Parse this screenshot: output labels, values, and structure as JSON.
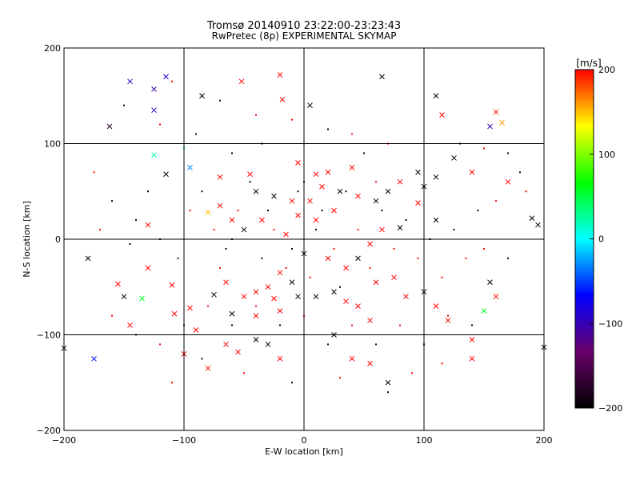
{
  "chart_data": {
    "type": "scatter",
    "title": "Tromsø 20140910 23:22:00-23:23:43",
    "subtitle": "RwPretec (8p) EXPERIMENTAL SKYMAP",
    "xlabel": "E-W location [km]",
    "ylabel": "N-S location [km]",
    "xlim": [
      -200,
      200
    ],
    "ylim": [
      -200,
      200
    ],
    "xticks": [
      -200,
      -100,
      0,
      100,
      200
    ],
    "yticks": [
      -200,
      -100,
      0,
      100,
      200
    ],
    "grid": true,
    "colorbar": {
      "label": "[m/s]",
      "min": -200,
      "max": 200,
      "ticks": [
        200,
        100,
        0,
        -100,
        -200
      ],
      "colors": [
        "#000000",
        "#6a006a",
        "#0000ff",
        "#00ffff",
        "#00ff00",
        "#ffff00",
        "#ff0000"
      ]
    },
    "series": [
      {
        "marker": "x",
        "points": [
          [
            -145,
            165,
            -90
          ],
          [
            -125,
            157,
            -100
          ],
          [
            -125,
            135,
            -90
          ],
          [
            -162,
            118,
            -180
          ],
          [
            -85,
            150,
            -200
          ],
          [
            -20,
            172,
            200
          ],
          [
            -52,
            165,
            200
          ],
          [
            -115,
            170,
            -80
          ],
          [
            -18,
            146,
            200
          ],
          [
            5,
            140,
            -200
          ],
          [
            65,
            170,
            -200
          ],
          [
            115,
            130,
            200
          ],
          [
            160,
            133,
            200
          ],
          [
            165,
            122,
            160
          ],
          [
            155,
            118,
            -100
          ],
          [
            110,
            150,
            -200
          ],
          [
            -125,
            88,
            20
          ],
          [
            -115,
            68,
            -200
          ],
          [
            -95,
            75,
            -30
          ],
          [
            -70,
            65,
            200
          ],
          [
            -45,
            68,
            200
          ],
          [
            10,
            68,
            200
          ],
          [
            20,
            70,
            200
          ],
          [
            -5,
            80,
            200
          ],
          [
            40,
            75,
            200
          ],
          [
            80,
            60,
            200
          ],
          [
            100,
            55,
            -200
          ],
          [
            95,
            70,
            -200
          ],
          [
            110,
            65,
            -200
          ],
          [
            140,
            70,
            200
          ],
          [
            125,
            85,
            -200
          ],
          [
            170,
            60,
            200
          ],
          [
            -40,
            50,
            -200
          ],
          [
            -25,
            45,
            -200
          ],
          [
            -10,
            40,
            200
          ],
          [
            5,
            40,
            200
          ],
          [
            15,
            55,
            200
          ],
          [
            30,
            50,
            -200
          ],
          [
            45,
            45,
            200
          ],
          [
            60,
            40,
            -200
          ],
          [
            70,
            50,
            -200
          ],
          [
            95,
            38,
            200
          ],
          [
            110,
            20,
            -200
          ],
          [
            -70,
            35,
            200
          ],
          [
            -60,
            20,
            200
          ],
          [
            -50,
            10,
            -200
          ],
          [
            -80,
            28,
            150
          ],
          [
            190,
            22,
            -200
          ],
          [
            195,
            15,
            -200
          ],
          [
            -180,
            -20,
            -200
          ],
          [
            -150,
            -60,
            -200
          ],
          [
            -145,
            -90,
            200
          ],
          [
            -135,
            -62,
            60
          ],
          [
            -175,
            -125,
            -60
          ],
          [
            -155,
            -47,
            200
          ],
          [
            -110,
            -48,
            200
          ],
          [
            -95,
            -72,
            200
          ],
          [
            -75,
            -58,
            -200
          ],
          [
            -65,
            -45,
            200
          ],
          [
            -50,
            -60,
            200
          ],
          [
            -40,
            -55,
            200
          ],
          [
            -30,
            -50,
            200
          ],
          [
            -25,
            -62,
            200
          ],
          [
            -20,
            -75,
            200
          ],
          [
            -10,
            -45,
            -200
          ],
          [
            -5,
            -60,
            -200
          ],
          [
            10,
            -60,
            -200
          ],
          [
            25,
            -55,
            -200
          ],
          [
            35,
            -65,
            200
          ],
          [
            45,
            -70,
            200
          ],
          [
            55,
            -85,
            200
          ],
          [
            60,
            -45,
            200
          ],
          [
            75,
            -40,
            200
          ],
          [
            85,
            -60,
            200
          ],
          [
            100,
            -55,
            -200
          ],
          [
            110,
            -70,
            200
          ],
          [
            120,
            -85,
            200
          ],
          [
            140,
            -105,
            200
          ],
          [
            155,
            -45,
            -200
          ],
          [
            160,
            -60,
            200
          ],
          [
            -40,
            -105,
            -200
          ],
          [
            -30,
            -110,
            -200
          ],
          [
            -20,
            -125,
            200
          ],
          [
            -65,
            -110,
            200
          ],
          [
            -80,
            -135,
            200
          ],
          [
            -100,
            -120,
            200
          ],
          [
            40,
            -125,
            200
          ],
          [
            55,
            -130,
            200
          ],
          [
            70,
            -150,
            -200
          ],
          [
            140,
            -125,
            200
          ],
          [
            -55,
            -118,
            200
          ],
          [
            25,
            -100,
            -200
          ],
          [
            -35,
            20,
            200
          ],
          [
            -15,
            5,
            200
          ],
          [
            0,
            -15,
            -200
          ],
          [
            20,
            -20,
            200
          ],
          [
            35,
            -30,
            200
          ],
          [
            -20,
            -35,
            200
          ],
          [
            -40,
            -80,
            200
          ],
          [
            -60,
            -78,
            -200
          ],
          [
            150,
            -75,
            60
          ],
          [
            -200,
            -114,
            -200
          ],
          [
            200,
            -113,
            -200
          ],
          [
            -130,
            15,
            200
          ],
          [
            -130,
            -30,
            200
          ],
          [
            -108,
            -78,
            200
          ],
          [
            -90,
            -95,
            200
          ],
          [
            45,
            -20,
            -200
          ],
          [
            55,
            -5,
            200
          ],
          [
            65,
            10,
            200
          ],
          [
            80,
            12,
            -200
          ],
          [
            -5,
            25,
            200
          ],
          [
            10,
            20,
            200
          ],
          [
            25,
            30,
            200
          ]
        ]
      },
      {
        "marker": "dot",
        "points": [
          [
            -150,
            140,
            -200
          ],
          [
            -110,
            165,
            200
          ],
          [
            -70,
            145,
            -200
          ],
          [
            -40,
            130,
            200
          ],
          [
            -35,
            100,
            -200
          ],
          [
            -10,
            125,
            200
          ],
          [
            0,
            100,
            200
          ],
          [
            20,
            115,
            -200
          ],
          [
            40,
            110,
            200
          ],
          [
            50,
            90,
            -200
          ],
          [
            70,
            100,
            200
          ],
          [
            -60,
            90,
            -200
          ],
          [
            -90,
            110,
            -200
          ],
          [
            -120,
            120,
            200
          ],
          [
            -100,
            95,
            50
          ],
          [
            130,
            100,
            -200
          ],
          [
            150,
            95,
            200
          ],
          [
            170,
            90,
            -200
          ],
          [
            180,
            70,
            -200
          ],
          [
            185,
            50,
            200
          ],
          [
            -175,
            70,
            200
          ],
          [
            -160,
            40,
            -200
          ],
          [
            -140,
            20,
            -200
          ],
          [
            -120,
            0,
            -200
          ],
          [
            -105,
            -20,
            -150
          ],
          [
            -95,
            30,
            200
          ],
          [
            -85,
            50,
            -200
          ],
          [
            -75,
            10,
            200
          ],
          [
            -65,
            -10,
            -200
          ],
          [
            -55,
            30,
            200
          ],
          [
            -45,
            60,
            -200
          ],
          [
            -35,
            -20,
            -200
          ],
          [
            -25,
            10,
            200
          ],
          [
            -15,
            -30,
            200
          ],
          [
            -5,
            50,
            -200
          ],
          [
            5,
            -40,
            200
          ],
          [
            15,
            30,
            -200
          ],
          [
            25,
            -10,
            200
          ],
          [
            35,
            50,
            -200
          ],
          [
            45,
            10,
            200
          ],
          [
            55,
            -30,
            200
          ],
          [
            65,
            30,
            -200
          ],
          [
            75,
            -10,
            200
          ],
          [
            85,
            20,
            -200
          ],
          [
            95,
            -20,
            200
          ],
          [
            105,
            0,
            -200
          ],
          [
            115,
            -40,
            200
          ],
          [
            125,
            10,
            -200
          ],
          [
            135,
            -20,
            200
          ],
          [
            145,
            30,
            -200
          ],
          [
            -160,
            -80,
            200
          ],
          [
            -140,
            -100,
            -200
          ],
          [
            -120,
            -110,
            200
          ],
          [
            -100,
            -90,
            -200
          ],
          [
            -80,
            -70,
            200
          ],
          [
            -60,
            -90,
            -200
          ],
          [
            -40,
            -70,
            200
          ],
          [
            -20,
            -90,
            -200
          ],
          [
            0,
            -80,
            200
          ],
          [
            20,
            -110,
            -200
          ],
          [
            40,
            -90,
            200
          ],
          [
            60,
            -110,
            -200
          ],
          [
            80,
            -90,
            200
          ],
          [
            100,
            -110,
            -200
          ],
          [
            120,
            -80,
            200
          ],
          [
            140,
            -90,
            -200
          ],
          [
            -50,
            -140,
            200
          ],
          [
            -10,
            -150,
            -200
          ],
          [
            30,
            -145,
            200
          ],
          [
            70,
            -160,
            -200
          ],
          [
            -110,
            -150,
            200
          ],
          [
            90,
            -140,
            200
          ],
          [
            -130,
            50,
            -200
          ],
          [
            160,
            40,
            200
          ],
          [
            170,
            -20,
            -200
          ],
          [
            -170,
            10,
            200
          ],
          [
            -145,
            -5,
            -200
          ],
          [
            150,
            -10,
            200
          ],
          [
            115,
            -130,
            200
          ],
          [
            -85,
            -125,
            -200
          ],
          [
            -30,
            30,
            -200
          ],
          [
            30,
            -50,
            -200
          ],
          [
            -10,
            -10,
            -200
          ],
          [
            10,
            10,
            -200
          ],
          [
            0,
            60,
            -200
          ],
          [
            -60,
            0,
            -200
          ],
          [
            60,
            60,
            200
          ],
          [
            -70,
            -30,
            200
          ]
        ]
      }
    ]
  }
}
